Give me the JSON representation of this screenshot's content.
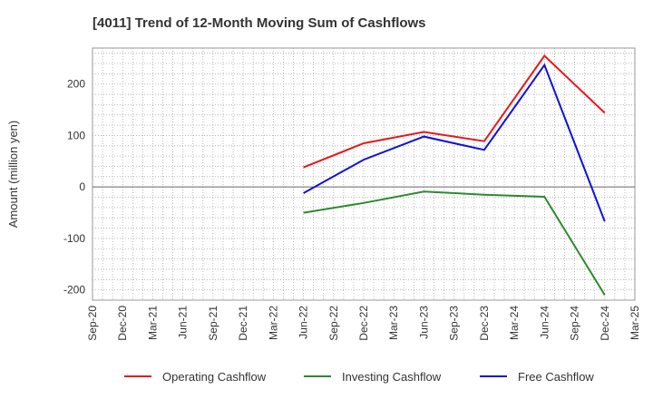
{
  "chart_data": {
    "type": "line",
    "title": "[4011]  Trend of 12-Month Moving Sum of Cashflows",
    "xlabel": "",
    "ylabel": "Amount (million yen)",
    "x_ticks": [
      "Sep-20",
      "Dec-20",
      "Mar-21",
      "Jun-21",
      "Sep-21",
      "Dec-21",
      "Mar-22",
      "Jun-22",
      "Sep-22",
      "Dec-22",
      "Mar-23",
      "Jun-23",
      "Sep-23",
      "Dec-23",
      "Mar-24",
      "Jun-24",
      "Sep-24",
      "Dec-24",
      "Mar-25"
    ],
    "y_ticks": [
      -200,
      -100,
      0,
      100,
      200
    ],
    "ylim": [
      -220,
      270
    ],
    "grid": true,
    "legend_position": "bottom",
    "series": [
      {
        "name": "Operating Cashflow",
        "color": "#e8191a",
        "points": [
          [
            "Jun-22",
            38
          ],
          [
            "Dec-22",
            85
          ],
          [
            "Jun-23",
            107
          ],
          [
            "Dec-23",
            89
          ],
          [
            "Jun-24",
            255
          ],
          [
            "Dec-24",
            144
          ]
        ]
      },
      {
        "name": "Investing Cashflow",
        "color": "#2d8a2d",
        "points": [
          [
            "Jun-22",
            -50
          ],
          [
            "Dec-22",
            -31
          ],
          [
            "Jun-23",
            -9
          ],
          [
            "Dec-23",
            -15
          ],
          [
            "Jun-24",
            -19
          ],
          [
            "Dec-24",
            -210
          ]
        ]
      },
      {
        "name": "Free Cashflow",
        "color": "#1010d8",
        "points": [
          [
            "Jun-22",
            -12
          ],
          [
            "Dec-22",
            53
          ],
          [
            "Jun-23",
            98
          ],
          [
            "Dec-23",
            72
          ],
          [
            "Jun-24",
            237
          ],
          [
            "Dec-24",
            -67
          ]
        ]
      }
    ]
  }
}
